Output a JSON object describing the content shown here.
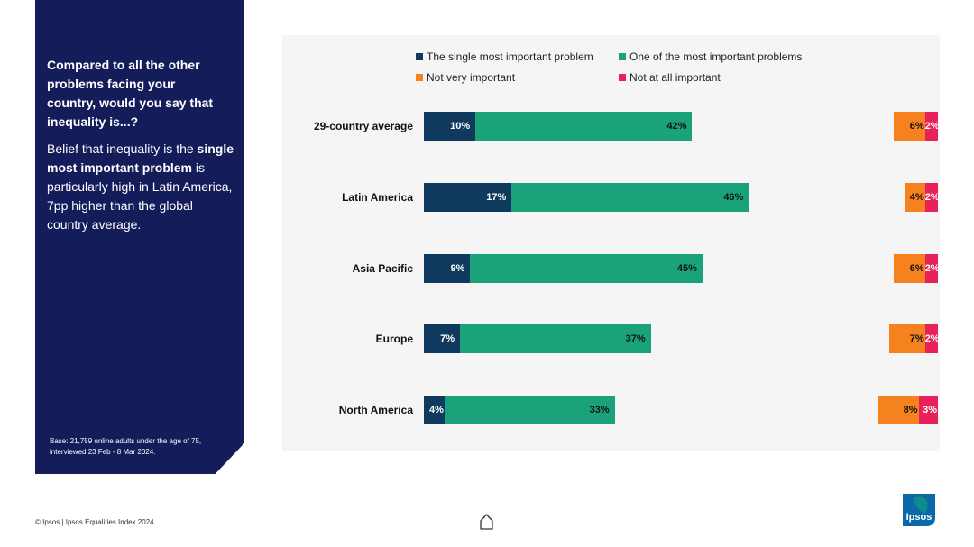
{
  "side_panel": {
    "question": "Compared to all the other problems facing  your country, would you say that inequality is...?",
    "insight_before": "Belief that inequality is the ",
    "insight_bold": "single most important problem",
    "insight_after": " is particularly high in Latin America, 7pp higher than the global country average.",
    "base_note": "Base: 21,759 online adults under the age of 75, interviewed 23 Feb - 8 Mar 2024."
  },
  "footer": {
    "text": "© Ipsos | Ipsos Equalities Index 2024"
  },
  "logo": {
    "text": "Ipsos"
  },
  "icons": {
    "home": "home-icon"
  },
  "colors": {
    "single": "#0f3a5e",
    "one_of": "#1aa37b",
    "not_very": "#f5821f",
    "not_at_all": "#e8215a"
  },
  "chart_data": {
    "type": "bar",
    "orientation": "horizontal",
    "stacked": true,
    "categories": [
      "29-country average",
      "Latin America",
      "Asia Pacific",
      "Europe",
      "North America"
    ],
    "series": [
      {
        "name": "The single most important problem",
        "values": [
          10,
          17,
          9,
          7,
          4
        ],
        "labels": [
          "10%",
          "17%",
          "9%",
          "7%",
          "4%"
        ]
      },
      {
        "name": "One of the most important problems",
        "values": [
          42,
          46,
          45,
          37,
          33
        ],
        "labels": [
          "42%",
          "46%",
          "45%",
          "37%",
          "33%"
        ]
      },
      {
        "name": "Not very important",
        "values": [
          6,
          4,
          6,
          7,
          8
        ],
        "labels": [
          "6%",
          "4%",
          "6%",
          "7%",
          "8%"
        ]
      },
      {
        "name": "Not at all important",
        "values": [
          2,
          2,
          2,
          2,
          3
        ],
        "labels": [
          "2%",
          "2%",
          "2%",
          "2%",
          "3%"
        ]
      }
    ],
    "legend_position": "top",
    "grid": false
  }
}
